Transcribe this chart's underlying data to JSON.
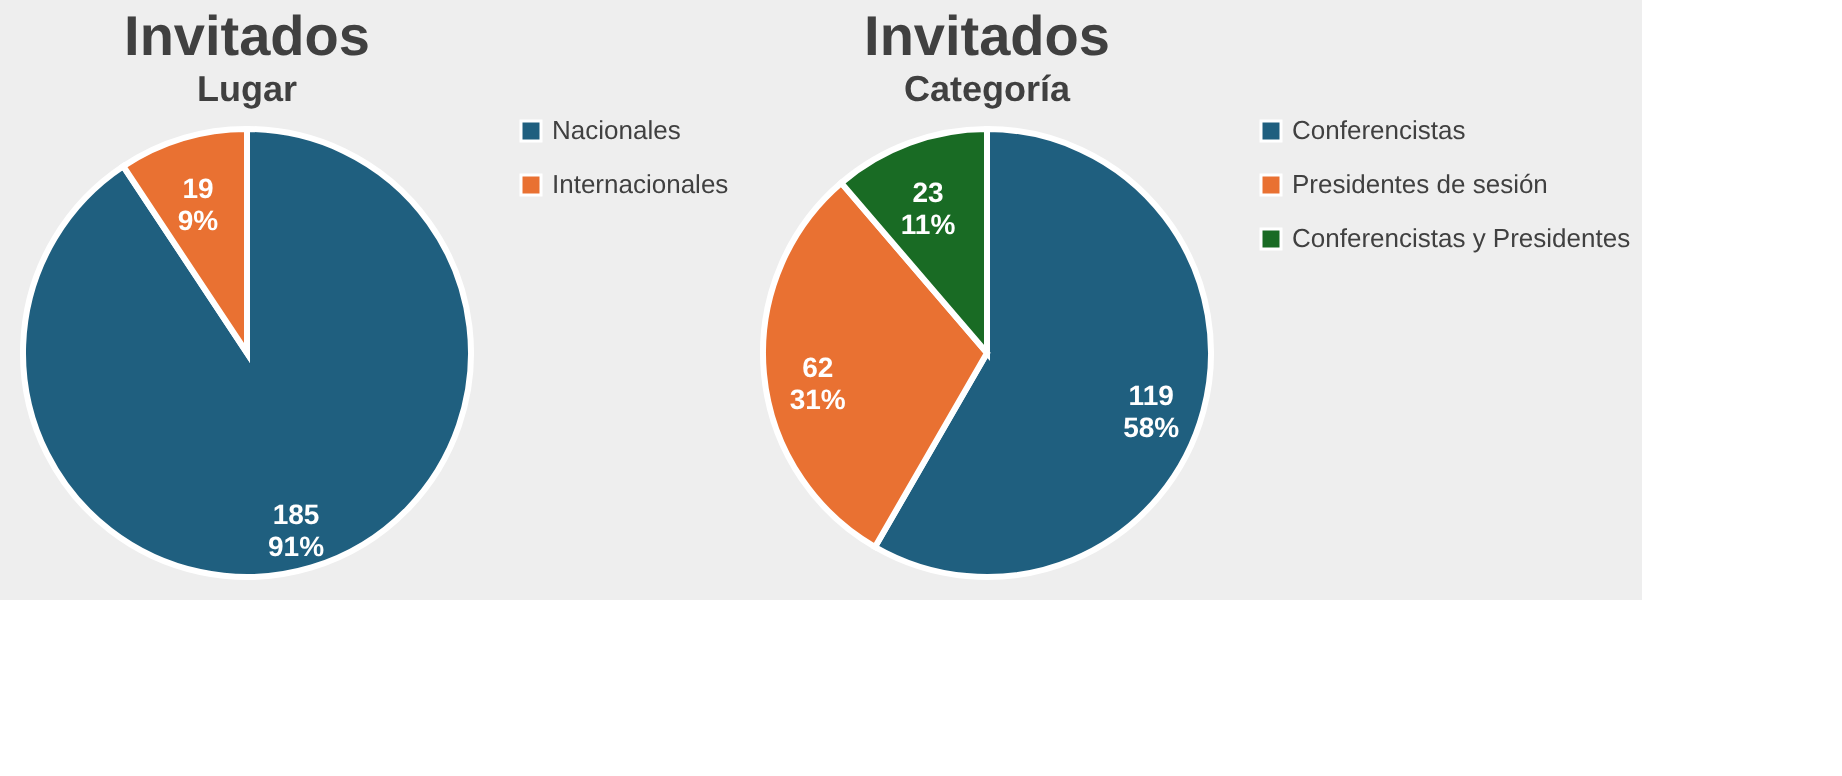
{
  "chart_data": [
    {
      "type": "pie",
      "title": "Invitados",
      "subtitle": "Lugar",
      "categories": [
        "Nacionales",
        "Internacionales"
      ],
      "values": [
        185,
        19
      ],
      "colors": [
        "#1f5f7f",
        "#e97132"
      ],
      "value_labels": [
        "185\n91%",
        "19\n9%"
      ],
      "legend": "right"
    },
    {
      "type": "pie",
      "title": "Invitados",
      "subtitle": "Categoría",
      "categories": [
        "Conferencistas",
        "Presidentes de sesión",
        "Conferencistas y Presidentes"
      ],
      "values": [
        119,
        62,
        23
      ],
      "colors": [
        "#1f5f7f",
        "#e97132",
        "#196b24"
      ],
      "value_labels": [
        "119\n58%",
        "62\n31%",
        "23\n11%"
      ],
      "legend": "right"
    }
  ]
}
